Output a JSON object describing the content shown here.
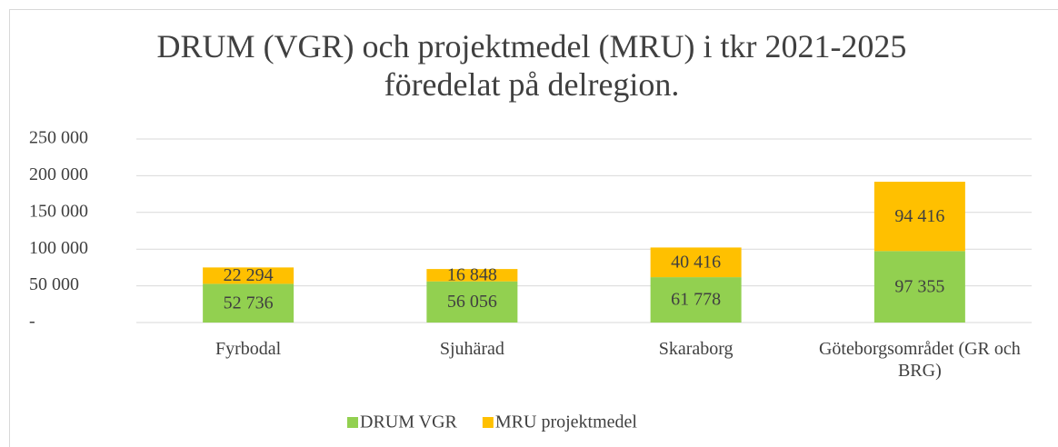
{
  "chart_data": {
    "type": "stacked_bar",
    "title": "DRUM (VGR) och projektmedel (MRU) i tkr 2021-2025 föredelat på delregion.",
    "categories": [
      "Fyrbodal",
      "Sjuhärad",
      "Skaraborg",
      "Göteborgsområdet (GR och BRG)"
    ],
    "series": [
      {
        "name": "DRUM VGR",
        "color": "#92d050",
        "values": [
          52736,
          56056,
          61778,
          97355
        ],
        "value_labels": [
          "52 736",
          "56 056",
          "61 778",
          "97 355"
        ]
      },
      {
        "name": "MRU projektmedel",
        "color": "#ffc000",
        "values": [
          22294,
          16848,
          40416,
          94416
        ],
        "value_labels": [
          "22 294",
          "16 848",
          "40 416",
          "94 416"
        ]
      }
    ],
    "ylim": [
      0,
      250000
    ],
    "yticks": [
      {
        "value": 0,
        "label": "-"
      },
      {
        "value": 50000,
        "label": "50 000"
      },
      {
        "value": 100000,
        "label": "100 000"
      },
      {
        "value": 150000,
        "label": "150 000"
      },
      {
        "value": 200000,
        "label": "200 000"
      },
      {
        "value": 250000,
        "label": "250 000"
      }
    ],
    "grid": true,
    "legend": "bottom"
  }
}
